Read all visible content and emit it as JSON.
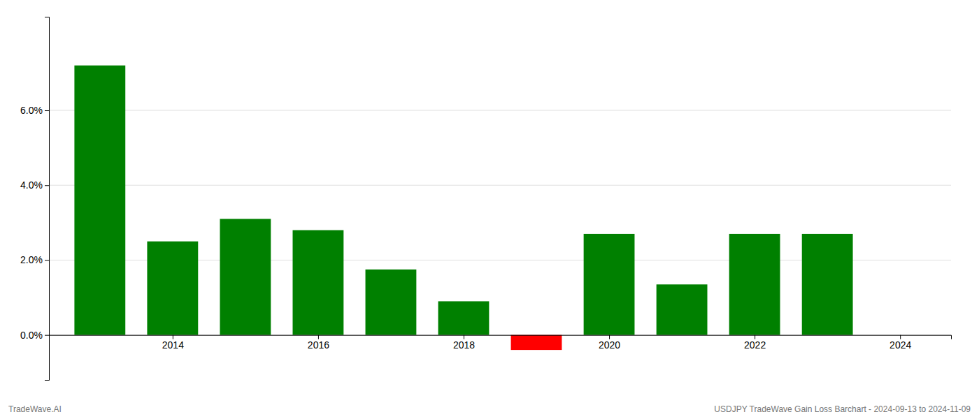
{
  "chart_data": {
    "type": "bar",
    "x": [
      2013,
      2014,
      2015,
      2016,
      2017,
      2018,
      2019,
      2020,
      2021,
      2022,
      2023
    ],
    "values": [
      0.072,
      0.025,
      0.031,
      0.028,
      0.0175,
      0.009,
      -0.004,
      0.027,
      0.0135,
      0.027,
      0.027
    ],
    "colors": [
      "#008000",
      "#008000",
      "#008000",
      "#008000",
      "#008000",
      "#008000",
      "#ff0000",
      "#008000",
      "#008000",
      "#008000",
      "#008000"
    ],
    "xlim": [
      2012.3,
      2024.7
    ],
    "xticks": [
      2014,
      2016,
      2018,
      2020,
      2022,
      2024
    ],
    "ylim": [
      -0.012,
      0.085
    ],
    "yticks": [
      {
        "value": 0.0,
        "label": "0.0%"
      },
      {
        "value": 0.02,
        "label": "2.0%"
      },
      {
        "value": 0.04,
        "label": "4.0%"
      },
      {
        "value": 0.06,
        "label": "6.0%"
      }
    ],
    "grid": true,
    "annotations": [
      "TradeWave.AI",
      "USDJPY TradeWave Gain Loss Barchart - 2024-09-13 to 2024-11-09"
    ]
  }
}
